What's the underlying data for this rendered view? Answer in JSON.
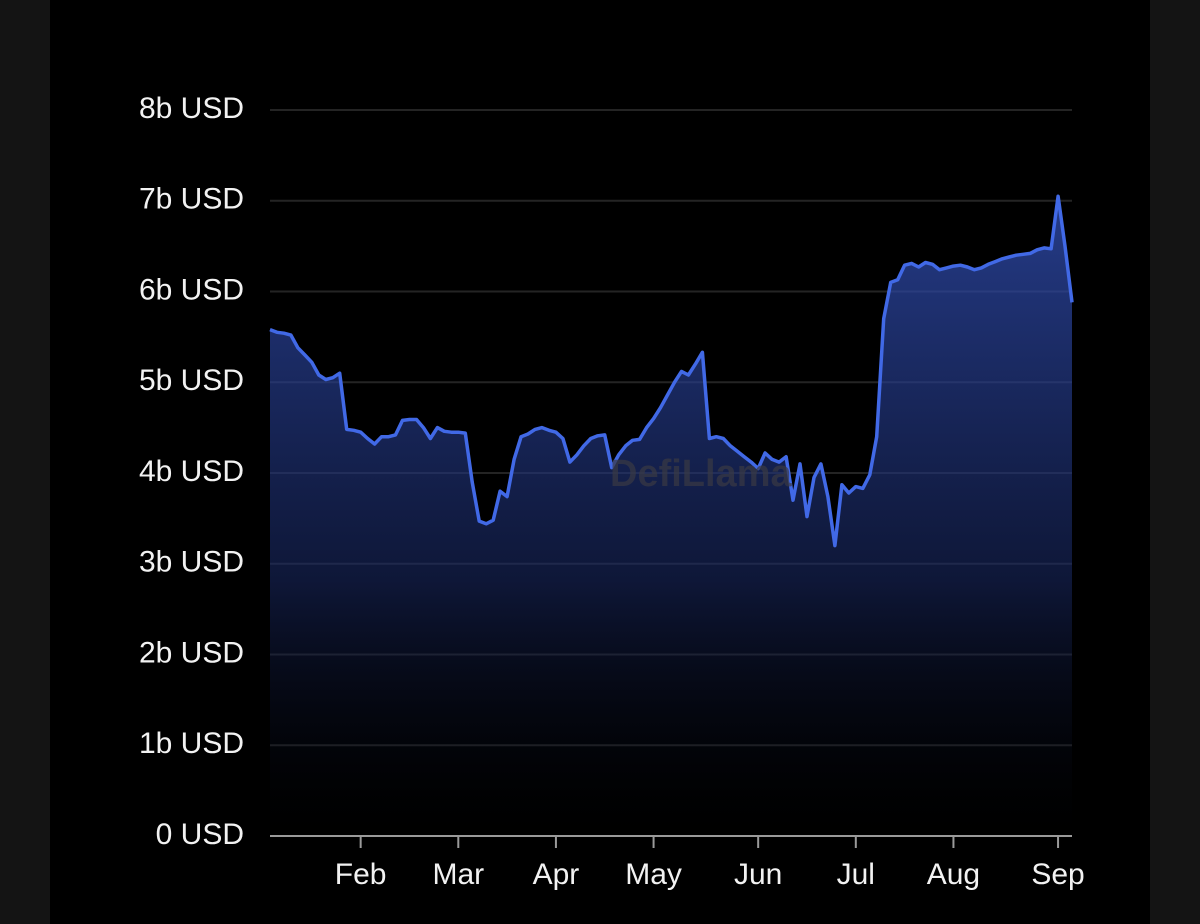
{
  "chart_data": {
    "type": "area",
    "watermark": "DefiLlama",
    "categories": [
      null,
      null,
      null,
      null,
      null,
      null,
      null,
      null,
      null,
      null,
      null,
      null,
      null,
      "Feb",
      null,
      null,
      null,
      null,
      null,
      null,
      null,
      null,
      null,
      null,
      null,
      null,
      null,
      "Mar",
      null,
      null,
      null,
      null,
      null,
      null,
      null,
      null,
      null,
      null,
      null,
      null,
      null,
      "Apr",
      null,
      null,
      null,
      null,
      null,
      null,
      null,
      null,
      null,
      null,
      null,
      null,
      null,
      "May",
      null,
      null,
      null,
      null,
      null,
      null,
      null,
      null,
      null,
      null,
      null,
      null,
      null,
      null,
      "Jun",
      null,
      null,
      null,
      null,
      null,
      null,
      null,
      null,
      null,
      null,
      null,
      null,
      null,
      "Jul",
      null,
      null,
      null,
      null,
      null,
      null,
      null,
      null,
      null,
      null,
      null,
      null,
      null,
      "Aug",
      null,
      null,
      null,
      null,
      null,
      null,
      null,
      null,
      null,
      null,
      null,
      null,
      null,
      null,
      "Sep",
      null,
      null
    ],
    "values": [
      5.58,
      5.55,
      5.54,
      5.52,
      5.38,
      5.3,
      5.22,
      5.08,
      5.03,
      5.05,
      5.1,
      4.48,
      4.47,
      4.45,
      4.38,
      4.32,
      4.4,
      4.4,
      4.42,
      4.58,
      4.59,
      4.59,
      4.5,
      4.38,
      4.5,
      4.46,
      4.45,
      4.45,
      4.44,
      3.9,
      3.47,
      3.44,
      3.48,
      3.8,
      3.74,
      4.15,
      4.4,
      4.43,
      4.48,
      4.5,
      4.47,
      4.45,
      4.38,
      4.12,
      4.2,
      4.3,
      4.38,
      4.41,
      4.42,
      4.06,
      4.2,
      4.3,
      4.36,
      4.37,
      4.5,
      4.6,
      4.72,
      4.86,
      5.0,
      5.12,
      5.08,
      5.2,
      5.33,
      4.38,
      4.4,
      4.38,
      4.3,
      4.24,
      4.18,
      4.12,
      4.05,
      4.22,
      4.15,
      4.12,
      4.18,
      3.7,
      4.1,
      3.52,
      3.95,
      4.1,
      3.74,
      3.2,
      3.87,
      3.78,
      3.85,
      3.83,
      3.98,
      4.4,
      5.7,
      6.1,
      6.13,
      6.29,
      6.31,
      6.27,
      6.32,
      6.3,
      6.24,
      6.26,
      6.28,
      6.29,
      6.27,
      6.24,
      6.26,
      6.3,
      6.33,
      6.36,
      6.38,
      6.4,
      6.41,
      6.42,
      6.46,
      6.48,
      6.47,
      7.05,
      6.5,
      5.88
    ],
    "color": "#4169e6",
    "ylim": [
      0,
      8
    ],
    "yticks": [
      {
        "value": 0,
        "label": "0 USD"
      },
      {
        "value": 1,
        "label": "1b USD"
      },
      {
        "value": 2,
        "label": "2b USD"
      },
      {
        "value": 3,
        "label": "3b USD"
      },
      {
        "value": 4,
        "label": "4b USD"
      },
      {
        "value": 5,
        "label": "5b USD"
      },
      {
        "value": 6,
        "label": "6b USD"
      },
      {
        "value": 7,
        "label": "7b USD"
      },
      {
        "value": 8,
        "label": "8b USD"
      }
    ],
    "grid": true
  }
}
